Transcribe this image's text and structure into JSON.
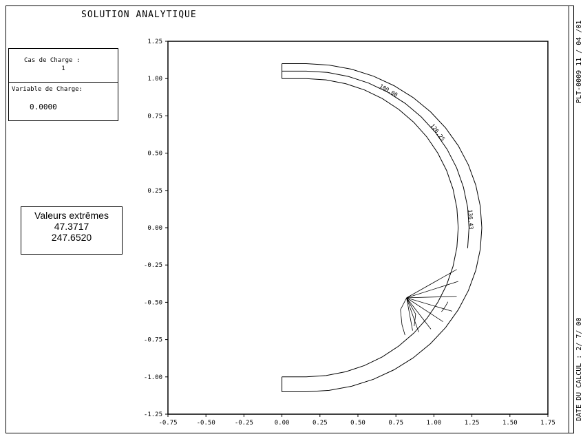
{
  "title": "SOLUTION ANALYTIQUE",
  "case_box": {
    "case_label": "Cas de Charge :",
    "case_value": "1",
    "variable_label": "Variable de Charge:",
    "variable_value": "0.0000"
  },
  "extremes": {
    "label": "Valeurs extrêmes",
    "min": "47.3717",
    "max": "247.6520"
  },
  "side_text": {
    "top": "PLT-0009   11 / 04 /01",
    "bottom": "DATE DU CALCUL : 2/ 7/ 00"
  },
  "iso_labels": [
    "100.00",
    "126.25",
    "136.43"
  ],
  "chart_data": {
    "type": "contour",
    "xlim": [
      -0.75,
      1.75
    ],
    "ylim": [
      -1.25,
      1.25
    ],
    "x_ticks": [
      "-0.75",
      "-0.50",
      "-0.25",
      "0.00",
      "0.25",
      "0.50",
      "0.75",
      "1.00",
      "1.25",
      "1.50",
      "1.75"
    ],
    "y_ticks": [
      "1.25",
      "1.00",
      "0.75",
      "0.50",
      "0.25",
      "0.00",
      "-0.25",
      "-0.50",
      "-0.75",
      "-1.00",
      "-1.25"
    ],
    "geometry": {
      "inner_radius": 1.0,
      "outer_radius": 1.1,
      "mid_radius": 1.05,
      "stub_x0": 0.0,
      "stub_x1": 0.16
    },
    "isolines": [
      {
        "value": "100.00",
        "angle_deg": 60
      },
      {
        "value": "126.25",
        "angle_deg": 37
      },
      {
        "value": "136.43",
        "angle_deg": 3
      }
    ],
    "singularity": {
      "x": 0.82,
      "y": -0.47
    }
  }
}
